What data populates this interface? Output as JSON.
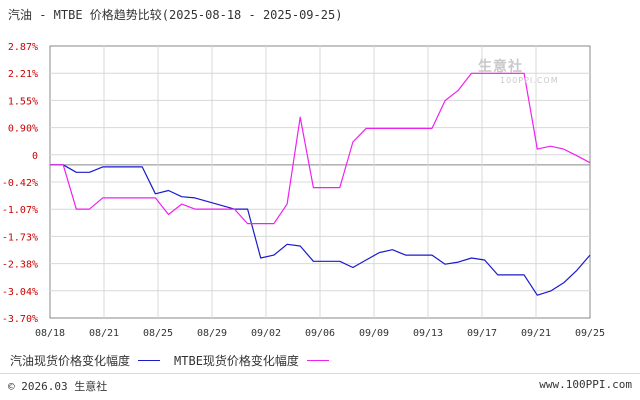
{
  "header": {
    "title": "汽油 - MTBE 价格趋势比较(2025-08-18 - 2025-09-25)"
  },
  "watermark": {
    "name": "生意社",
    "url": "100PPI.COM"
  },
  "footer": {
    "left": "© 2026.03 生意社",
    "right": "www.100PPI.com"
  },
  "colors": {
    "series1": "#1a1acc",
    "series2": "#ee22ee",
    "grid": "#d8d8d8",
    "axis": "#888888",
    "zero_line": "#888888"
  },
  "chart_data": {
    "type": "line",
    "x": [
      "08/18",
      "08/19",
      "08/20",
      "08/21",
      "08/22",
      "08/25",
      "08/26",
      "08/27",
      "08/28",
      "08/29",
      "09/01",
      "09/02",
      "09/03",
      "09/04",
      "09/05",
      "09/08",
      "09/09",
      "09/10",
      "09/11",
      "09/12",
      "09/15",
      "09/16",
      "09/17",
      "09/18",
      "09/19",
      "09/22",
      "09/23",
      "09/24",
      "09/25"
    ],
    "x_tick_labels": [
      "08/18",
      "08/21",
      "08/25",
      "08/29",
      "09/02",
      "09/06",
      "09/09",
      "09/13",
      "09/17",
      "09/21",
      "09/25"
    ],
    "y_tick_labels": [
      "2.87%",
      "2.21%",
      "1.55%",
      "0.90%",
      "0",
      "-0.42%",
      "-1.07%",
      "-1.73%",
      "-2.38%",
      "-3.04%",
      "-3.70%"
    ],
    "ylim": [
      -3.7,
      2.87
    ],
    "grid": true,
    "legend_position": "bottom-left",
    "series": [
      {
        "name": "汽油现货价格变化幅度",
        "color_key": "series1",
        "points": [
          [
            "2025-08-18",
            0.0
          ],
          [
            "2025-08-19",
            0.0
          ],
          [
            "2025-08-20",
            -0.18
          ],
          [
            "2025-08-21",
            -0.18
          ],
          [
            "2025-08-22",
            -0.05
          ],
          [
            "2025-08-25",
            -0.05
          ],
          [
            "2025-08-26",
            -0.7
          ],
          [
            "2025-08-27",
            -0.62
          ],
          [
            "2025-08-28",
            -0.77
          ],
          [
            "2025-08-29",
            -0.8
          ],
          [
            "2025-09-01",
            -1.07
          ],
          [
            "2025-09-02",
            -1.07
          ],
          [
            "2025-09-03",
            -2.25
          ],
          [
            "2025-09-04",
            -2.18
          ],
          [
            "2025-09-05",
            -1.92
          ],
          [
            "2025-09-06",
            -1.96
          ],
          [
            "2025-09-07",
            -2.33
          ],
          [
            "2025-09-08",
            -2.33
          ],
          [
            "2025-09-09",
            -2.33
          ],
          [
            "2025-09-10",
            -2.48
          ],
          [
            "2025-09-11",
            -2.3
          ],
          [
            "2025-09-12",
            -2.12
          ],
          [
            "2025-09-13",
            -2.05
          ],
          [
            "2025-09-14",
            -2.18
          ],
          [
            "2025-09-15",
            -2.18
          ],
          [
            "2025-09-16",
            -2.18
          ],
          [
            "2025-09-17",
            -2.4
          ],
          [
            "2025-09-18",
            -2.35
          ],
          [
            "2025-09-19",
            -2.25
          ],
          [
            "2025-09-20",
            -2.3
          ],
          [
            "2025-09-21",
            -2.66
          ],
          [
            "2025-09-22",
            -2.66
          ],
          [
            "2025-09-23",
            -2.66
          ],
          [
            "2025-09-24",
            -3.15
          ],
          [
            "2025-09-25",
            -3.05
          ],
          [
            "2025-09-26",
            -2.85
          ],
          [
            "2025-09-27",
            -2.55
          ],
          [
            "2025-09-28",
            -2.18
          ]
        ]
      },
      {
        "name": "MTBE现货价格变化幅度",
        "color_key": "series2",
        "points": [
          [
            "2025-08-18",
            0.0
          ],
          [
            "2025-08-19",
            0.0
          ],
          [
            "2025-08-20",
            -1.07
          ],
          [
            "2025-08-21",
            -1.07
          ],
          [
            "2025-08-22",
            -0.8
          ],
          [
            "2025-08-25",
            -0.8
          ],
          [
            "2025-08-26",
            -0.8
          ],
          [
            "2025-08-27",
            -1.2
          ],
          [
            "2025-08-28",
            -0.95
          ],
          [
            "2025-08-29",
            -1.07
          ],
          [
            "2025-09-01",
            -1.07
          ],
          [
            "2025-09-02",
            -1.42
          ],
          [
            "2025-09-03",
            -1.42
          ],
          [
            "2025-09-04",
            -1.42
          ],
          [
            "2025-09-05",
            -0.95
          ],
          [
            "2025-09-06",
            1.15
          ],
          [
            "2025-09-07",
            -0.55
          ],
          [
            "2025-09-08",
            -0.55
          ],
          [
            "2025-09-09",
            -0.55
          ],
          [
            "2025-09-10",
            0.55
          ],
          [
            "2025-09-11",
            0.88
          ],
          [
            "2025-09-12",
            0.88
          ],
          [
            "2025-09-13",
            0.88
          ],
          [
            "2025-09-14",
            0.88
          ],
          [
            "2025-09-15",
            0.88
          ],
          [
            "2025-09-16",
            0.88
          ],
          [
            "2025-09-17",
            1.55
          ],
          [
            "2025-09-18",
            1.8
          ],
          [
            "2025-09-19",
            2.21
          ],
          [
            "2025-09-20",
            2.21
          ],
          [
            "2025-09-21",
            2.21
          ],
          [
            "2025-09-22",
            2.21
          ],
          [
            "2025-09-23",
            2.21
          ],
          [
            "2025-09-24",
            0.38
          ],
          [
            "2025-09-25",
            0.45
          ],
          [
            "2025-09-26",
            0.38
          ],
          [
            "2025-09-27",
            0.22
          ],
          [
            "2025-09-28",
            0.05
          ]
        ]
      }
    ]
  }
}
